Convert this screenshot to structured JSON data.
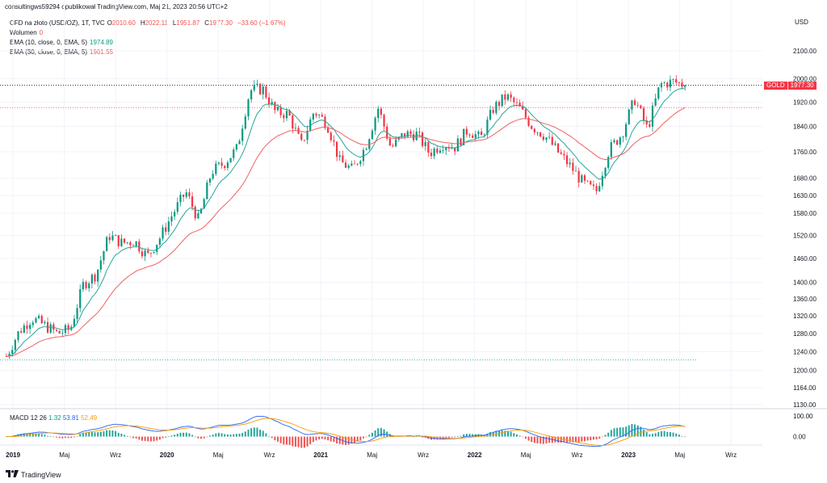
{
  "header": {
    "published": "consultingws59294 opublikował TradingView.com, Maj 21, 2023 20:56 UTC+2"
  },
  "legend": {
    "symbol": "CFD na złoto (USD/OZ), 1T, TVC",
    "ohlc": [
      {
        "label": "O",
        "value": "2010.60"
      },
      {
        "label": "H",
        "value": "2022.11"
      },
      {
        "label": "L",
        "value": "1951.87"
      },
      {
        "label": "C",
        "value": "1977.30"
      }
    ],
    "change": "−33.60 (−1.67%)",
    "volume_label": "Wolumen",
    "volume_value": "0",
    "ema10_label": "EMA (10, close, 0, EMA, 5)",
    "ema10_value": "1974.89",
    "ema30_label": "EMA (30, close, 0, EMA, 5)",
    "ema30_value": "1901.55"
  },
  "price_axis": {
    "currency": "USD",
    "last_symbol": "GOLD",
    "last_price": "1977.30"
  },
  "macd": {
    "label": "MACD 12 26",
    "hist": "1.32",
    "macd": "53.81",
    "signal": "52.49"
  },
  "colors": {
    "up": "#089981",
    "down": "#f23645",
    "ema10": "#26a69a",
    "ema30": "#f06060",
    "macd_line": "#2962ff",
    "signal_line": "#ff9800"
  },
  "logo": {
    "icon": "tradingview-logo-icon",
    "text": "TradingView"
  },
  "chart_data": [
    {
      "type": "candlestick",
      "title": "CFD na złoto (USD/OZ), 1T, TVC",
      "ylabel": "USD",
      "ylim": [
        1130,
        2150
      ],
      "grid": true,
      "yticks": [
        1130,
        1164,
        1200,
        1240,
        1280,
        1320,
        1360,
        1400,
        1460,
        1520,
        1580,
        1630,
        1680,
        1760,
        1840,
        1920,
        2000,
        2100
      ],
      "xticks": [
        "2019",
        "Maj",
        "Wrz",
        "2020",
        "Maj",
        "Wrz",
        "2021",
        "Maj",
        "Wrz",
        "2022",
        "Maj",
        "Wrz",
        "2023",
        "Maj",
        "Wrz"
      ],
      "anchors": [
        {
          "x": "2018-12",
          "y": 1230
        },
        {
          "x": "2019-01",
          "y": 1285
        },
        {
          "x": "2019-02",
          "y": 1315
        },
        {
          "x": "2019-03",
          "y": 1298
        },
        {
          "x": "2019-04",
          "y": 1280
        },
        {
          "x": "2019-05",
          "y": 1290
        },
        {
          "x": "2019-06",
          "y": 1395
        },
        {
          "x": "2019-07",
          "y": 1420
        },
        {
          "x": "2019-08",
          "y": 1520
        },
        {
          "x": "2019-09",
          "y": 1500
        },
        {
          "x": "2019-10",
          "y": 1505
        },
        {
          "x": "2019-11",
          "y": 1465
        },
        {
          "x": "2019-12",
          "y": 1515
        },
        {
          "x": "2020-01",
          "y": 1580
        },
        {
          "x": "2020-02",
          "y": 1640
        },
        {
          "x": "2020-03",
          "y": 1560
        },
        {
          "x": "2020-04",
          "y": 1700
        },
        {
          "x": "2020-05",
          "y": 1725
        },
        {
          "x": "2020-06",
          "y": 1770
        },
        {
          "x": "2020-07",
          "y": 1960
        },
        {
          "x": "2020-08",
          "y": 1965
        },
        {
          "x": "2020-09",
          "y": 1885
        },
        {
          "x": "2020-10",
          "y": 1880
        },
        {
          "x": "2020-11",
          "y": 1780
        },
        {
          "x": "2020-12",
          "y": 1890
        },
        {
          "x": "2021-01",
          "y": 1850
        },
        {
          "x": "2021-02",
          "y": 1730
        },
        {
          "x": "2021-03",
          "y": 1705
        },
        {
          "x": "2021-04",
          "y": 1775
        },
        {
          "x": "2021-05",
          "y": 1900
        },
        {
          "x": "2021-06",
          "y": 1770
        },
        {
          "x": "2021-07",
          "y": 1815
        },
        {
          "x": "2021-08",
          "y": 1815
        },
        {
          "x": "2021-09",
          "y": 1755
        },
        {
          "x": "2021-10",
          "y": 1785
        },
        {
          "x": "2021-11",
          "y": 1775
        },
        {
          "x": "2021-12",
          "y": 1830
        },
        {
          "x": "2022-01",
          "y": 1800
        },
        {
          "x": "2022-02",
          "y": 1900
        },
        {
          "x": "2022-03",
          "y": 1940
        },
        {
          "x": "2022-04",
          "y": 1900
        },
        {
          "x": "2022-05",
          "y": 1840
        },
        {
          "x": "2022-06",
          "y": 1810
        },
        {
          "x": "2022-07",
          "y": 1760
        },
        {
          "x": "2022-08",
          "y": 1715
        },
        {
          "x": "2022-09",
          "y": 1665
        },
        {
          "x": "2022-10",
          "y": 1640
        },
        {
          "x": "2022-11",
          "y": 1765
        },
        {
          "x": "2022-12",
          "y": 1815
        },
        {
          "x": "2023-01",
          "y": 1930
        },
        {
          "x": "2023-02",
          "y": 1830
        },
        {
          "x": "2023-03",
          "y": 1980
        },
        {
          "x": "2023-04",
          "y": 1990
        },
        {
          "x": "2023-05",
          "y": 1977.3
        }
      ],
      "series": [
        {
          "name": "EMA (10, close, 0, EMA, 5)",
          "last": 1974.89
        },
        {
          "name": "EMA (30, close, 0, EMA, 5)",
          "last": 1901.55
        }
      ],
      "annotations": [
        {
          "text": "GOLD 1977.30",
          "y": 1977.3
        }
      ]
    },
    {
      "type": "macd",
      "title": "MACD 12 26",
      "ylim": [
        -25,
        115
      ],
      "yticks": [
        0,
        100
      ],
      "last": {
        "histogram": 1.32,
        "macd": 53.81,
        "signal": 52.49
      }
    }
  ]
}
